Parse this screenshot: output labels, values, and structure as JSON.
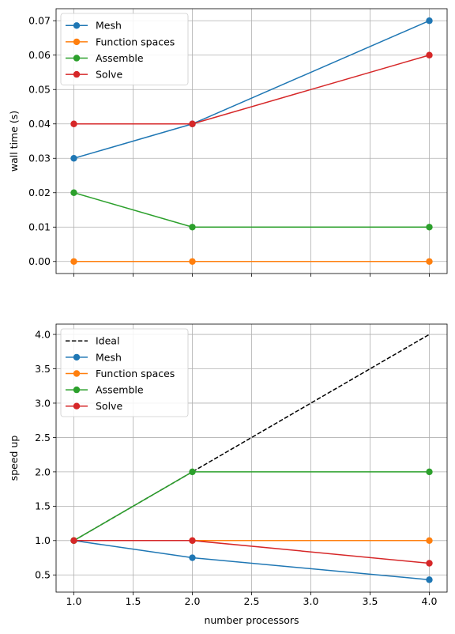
{
  "colors": {
    "Mesh": "#1f77b4",
    "Function spaces": "#ff7f0e",
    "Assemble": "#2ca02c",
    "Solve": "#d62728",
    "Ideal": "#000000",
    "grid": "#b0b0b0"
  },
  "chart_data": [
    {
      "type": "line",
      "title": "",
      "xlabel": "",
      "ylabel": "wall time (s)",
      "x": [
        1,
        2,
        4
      ],
      "xlim": [
        0.85,
        4.15
      ],
      "ylim": [
        -0.0035,
        0.0735
      ],
      "xticks": [
        1.0,
        1.5,
        2.0,
        2.5,
        3.0,
        3.5,
        4.0
      ],
      "xtick_labels_visible": false,
      "yticks": [
        0.0,
        0.01,
        0.02,
        0.03,
        0.04,
        0.05,
        0.06,
        0.07
      ],
      "ytick_labels": [
        "0.00",
        "0.01",
        "0.02",
        "0.03",
        "0.04",
        "0.05",
        "0.06",
        "0.07"
      ],
      "grid": true,
      "legend": "top-left",
      "series": [
        {
          "name": "Mesh",
          "values": [
            0.03,
            0.04,
            0.07
          ],
          "marker": true,
          "dashed": false
        },
        {
          "name": "Function spaces",
          "values": [
            0.0,
            0.0,
            0.0
          ],
          "marker": true,
          "dashed": false
        },
        {
          "name": "Assemble",
          "values": [
            0.02,
            0.01,
            0.01
          ],
          "marker": true,
          "dashed": false
        },
        {
          "name": "Solve",
          "values": [
            0.04,
            0.04,
            0.06
          ],
          "marker": true,
          "dashed": false
        }
      ]
    },
    {
      "type": "line",
      "title": "",
      "xlabel": "number processors",
      "ylabel": "speed up",
      "x": [
        1,
        2,
        4
      ],
      "xlim": [
        0.85,
        4.15
      ],
      "ylim": [
        0.25,
        4.15
      ],
      "xticks": [
        1.0,
        1.5,
        2.0,
        2.5,
        3.0,
        3.5,
        4.0
      ],
      "xtick_labels": [
        "1.0",
        "1.5",
        "2.0",
        "2.5",
        "3.0",
        "3.5",
        "4.0"
      ],
      "xtick_labels_visible": true,
      "yticks": [
        0.5,
        1.0,
        1.5,
        2.0,
        2.5,
        3.0,
        3.5,
        4.0
      ],
      "ytick_labels": [
        "0.5",
        "1.0",
        "1.5",
        "2.0",
        "2.5",
        "3.0",
        "3.5",
        "4.0"
      ],
      "grid": true,
      "legend": "top-left",
      "series": [
        {
          "name": "Ideal",
          "values": [
            1,
            2,
            4
          ],
          "marker": false,
          "dashed": true
        },
        {
          "name": "Mesh",
          "values": [
            1.0,
            0.75,
            0.43
          ],
          "marker": true,
          "dashed": false
        },
        {
          "name": "Function spaces",
          "values": [
            1.0,
            1.0,
            1.0
          ],
          "marker": true,
          "dashed": false
        },
        {
          "name": "Assemble",
          "values": [
            1.0,
            2.0,
            2.0
          ],
          "marker": true,
          "dashed": false
        },
        {
          "name": "Solve",
          "values": [
            1.0,
            1.0,
            0.67
          ],
          "marker": true,
          "dashed": false
        }
      ]
    }
  ]
}
